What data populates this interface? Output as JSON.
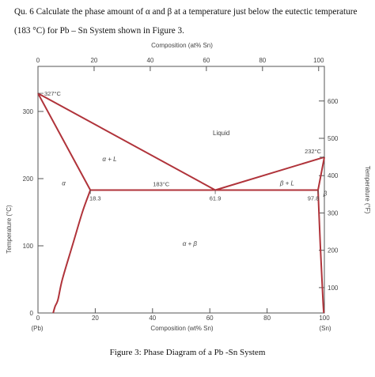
{
  "question": {
    "line1": "Qu. 6   Calculate the phase amount of α and β  at a temperature just below the eutectic temperature",
    "line2": "(183 °C)  for Pb – Sn System shown in Figure 3."
  },
  "caption": "Figure 3: Phase Diagram of a Pb -Sn System",
  "chart_data": {
    "type": "phase-diagram",
    "top_axis_label": "Composition (at% Sn)",
    "top_ticks": [
      "0",
      "20",
      "40",
      "60",
      "80",
      "100"
    ],
    "bottom_axis_label": "Composition (wt% Sn)",
    "bottom_ticks": [
      "0",
      "20",
      "40",
      "60",
      "80",
      "100"
    ],
    "left_axis_label": "Temperature (°C)",
    "left_ticks": [
      "0",
      "100",
      "200",
      "300"
    ],
    "right_axis_label": "Temperature (°F)",
    "right_ticks": [
      "100",
      "200",
      "300",
      "400",
      "500",
      "600"
    ],
    "end_labels": {
      "left": "(Pb)",
      "right": "(Sn)"
    },
    "xlim": [
      0,
      100
    ],
    "ylim": [
      0,
      335
    ],
    "phase_labels": [
      "Liquid",
      "α + L",
      "β + L",
      "α",
      "β",
      "α + β"
    ],
    "annotations": {
      "pb_melt": "327°C",
      "sn_melt": "232°C",
      "eutectic_temp": "183°C",
      "alpha_limit": "18.3",
      "eutectic_comp": "61.9",
      "beta_limit": "97.8"
    },
    "liquidus_left": [
      [
        0,
        327
      ],
      [
        61.9,
        183
      ]
    ],
    "liquidus_right": [
      [
        61.9,
        183
      ],
      [
        100,
        232
      ]
    ],
    "eutectic_isotherm": [
      [
        18.3,
        183
      ],
      [
        97.8,
        183
      ]
    ],
    "solidus_alpha": [
      [
        0,
        327
      ],
      [
        18.3,
        183
      ]
    ],
    "solvus_alpha": [
      [
        18.3,
        183
      ],
      [
        15.5,
        150
      ],
      [
        12,
        100
      ],
      [
        8.5,
        50
      ],
      [
        7,
        20
      ],
      [
        6,
        10
      ],
      [
        5.3,
        0
      ]
    ],
    "solidus_beta": [
      [
        97.8,
        183
      ],
      [
        100,
        232
      ]
    ],
    "solvus_beta": [
      [
        97.8,
        183
      ],
      [
        98.6,
        100
      ],
      [
        99.5,
        20
      ],
      [
        99.8,
        0
      ]
    ]
  }
}
